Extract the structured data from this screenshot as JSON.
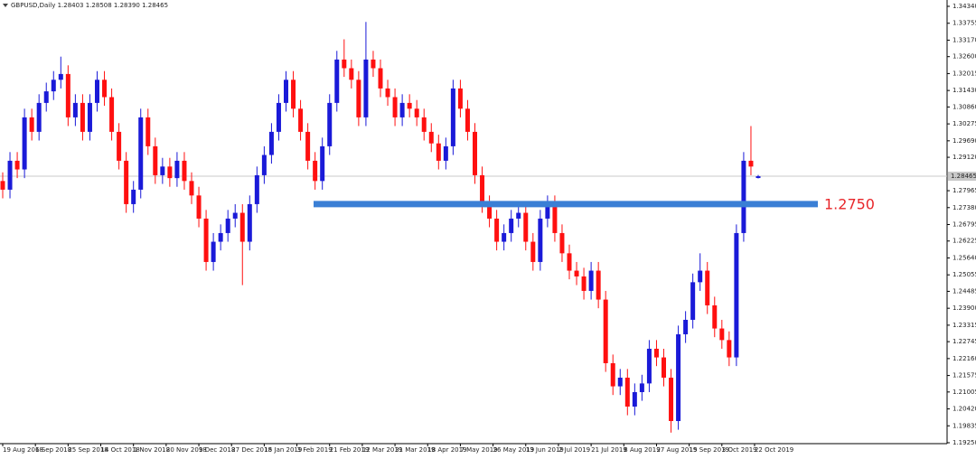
{
  "chart_data": {
    "type": "candlestick",
    "title": "GBPUSD,Daily  1.28403 1.28508 1.28390 1.28465",
    "open": [
      1.283,
      1.28,
      1.29,
      1.287,
      1.305,
      1.3,
      1.31,
      1.314,
      1.318,
      1.32,
      1.305,
      1.31,
      1.3,
      1.31,
      1.318,
      1.312,
      1.3,
      1.29,
      1.275,
      1.28,
      1.305,
      1.295,
      1.285,
      1.288,
      1.284,
      1.29,
      1.283,
      1.278,
      1.27,
      1.255,
      1.262,
      1.265,
      1.27,
      1.272,
      1.262,
      1.275,
      1.285,
      1.292,
      1.3,
      1.31,
      1.318,
      1.308,
      1.3,
      1.29,
      1.283,
      1.295,
      1.31,
      1.325,
      1.322,
      1.318,
      1.305,
      1.325,
      1.322,
      1.315,
      1.312,
      1.305,
      1.31,
      1.308,
      1.305,
      1.3,
      1.296,
      1.29,
      1.295,
      1.315,
      1.308,
      1.3,
      1.285,
      1.275,
      1.27,
      1.262,
      1.265,
      1.27,
      1.272,
      1.262,
      1.255,
      1.27,
      1.275,
      1.265,
      1.258,
      1.252,
      1.25,
      1.245,
      1.252,
      1.242,
      1.22,
      1.212,
      1.215,
      1.205,
      1.21,
      1.213,
      1.225,
      1.222,
      1.215,
      1.2,
      1.23,
      1.235,
      1.248,
      1.252,
      1.24,
      1.232,
      1.228,
      1.222,
      1.265,
      1.29,
      1.28403
    ],
    "high": [
      1.286,
      1.293,
      1.293,
      1.308,
      1.308,
      1.313,
      1.317,
      1.321,
      1.326,
      1.323,
      1.313,
      1.313,
      1.313,
      1.321,
      1.321,
      1.315,
      1.303,
      1.293,
      1.283,
      1.308,
      1.308,
      1.298,
      1.291,
      1.291,
      1.293,
      1.293,
      1.286,
      1.281,
      1.273,
      1.265,
      1.268,
      1.273,
      1.275,
      1.275,
      1.278,
      1.288,
      1.295,
      1.303,
      1.313,
      1.321,
      1.321,
      1.311,
      1.303,
      1.293,
      1.298,
      1.313,
      1.328,
      1.332,
      1.325,
      1.321,
      1.338,
      1.328,
      1.325,
      1.318,
      1.315,
      1.313,
      1.313,
      1.311,
      1.308,
      1.303,
      1.299,
      1.298,
      1.318,
      1.318,
      1.311,
      1.303,
      1.288,
      1.278,
      1.273,
      1.268,
      1.273,
      1.276,
      1.275,
      1.265,
      1.273,
      1.278,
      1.278,
      1.268,
      1.261,
      1.255,
      1.253,
      1.255,
      1.255,
      1.245,
      1.223,
      1.218,
      1.218,
      1.213,
      1.216,
      1.228,
      1.228,
      1.225,
      1.218,
      1.233,
      1.238,
      1.251,
      1.258,
      1.255,
      1.243,
      1.235,
      1.231,
      1.268,
      1.293,
      1.302,
      1.28508
    ],
    "low": [
      1.277,
      1.277,
      1.284,
      1.284,
      1.297,
      1.297,
      1.307,
      1.311,
      1.315,
      1.302,
      1.302,
      1.297,
      1.297,
      1.307,
      1.309,
      1.297,
      1.287,
      1.272,
      1.272,
      1.277,
      1.292,
      1.282,
      1.282,
      1.281,
      1.281,
      1.28,
      1.275,
      1.267,
      1.252,
      1.252,
      1.259,
      1.262,
      1.267,
      1.247,
      1.259,
      1.272,
      1.282,
      1.289,
      1.297,
      1.307,
      1.305,
      1.297,
      1.287,
      1.28,
      1.28,
      1.292,
      1.307,
      1.319,
      1.315,
      1.302,
      1.302,
      1.319,
      1.312,
      1.309,
      1.302,
      1.302,
      1.305,
      1.302,
      1.297,
      1.293,
      1.287,
      1.287,
      1.292,
      1.305,
      1.297,
      1.282,
      1.272,
      1.267,
      1.259,
      1.259,
      1.262,
      1.267,
      1.259,
      1.252,
      1.252,
      1.267,
      1.262,
      1.255,
      1.249,
      1.247,
      1.242,
      1.242,
      1.239,
      1.217,
      1.209,
      1.209,
      1.202,
      1.202,
      1.207,
      1.21,
      1.219,
      1.212,
      1.196,
      1.197,
      1.227,
      1.232,
      1.245,
      1.237,
      1.229,
      1.225,
      1.219,
      1.219,
      1.262,
      1.285,
      1.2839
    ],
    "close": [
      1.28,
      1.29,
      1.287,
      1.305,
      1.3,
      1.31,
      1.314,
      1.318,
      1.32,
      1.305,
      1.31,
      1.3,
      1.31,
      1.318,
      1.312,
      1.3,
      1.29,
      1.275,
      1.28,
      1.305,
      1.295,
      1.285,
      1.288,
      1.284,
      1.29,
      1.283,
      1.278,
      1.27,
      1.255,
      1.262,
      1.265,
      1.27,
      1.272,
      1.262,
      1.275,
      1.285,
      1.292,
      1.3,
      1.31,
      1.318,
      1.308,
      1.3,
      1.29,
      1.283,
      1.295,
      1.31,
      1.325,
      1.322,
      1.318,
      1.305,
      1.325,
      1.322,
      1.315,
      1.312,
      1.305,
      1.31,
      1.308,
      1.305,
      1.3,
      1.296,
      1.29,
      1.295,
      1.315,
      1.308,
      1.3,
      1.285,
      1.275,
      1.27,
      1.262,
      1.265,
      1.27,
      1.272,
      1.262,
      1.255,
      1.27,
      1.275,
      1.265,
      1.258,
      1.252,
      1.25,
      1.245,
      1.252,
      1.242,
      1.22,
      1.212,
      1.215,
      1.205,
      1.21,
      1.213,
      1.225,
      1.222,
      1.215,
      1.2,
      1.23,
      1.235,
      1.248,
      1.252,
      1.24,
      1.232,
      1.228,
      1.222,
      1.265,
      1.29,
      1.288,
      1.28465
    ],
    "up_color": "#1a1ad8",
    "down_color": "#ff1010",
    "xlim": [
      0,
      130
    ],
    "xticks": [
      {
        "value": 0,
        "label": "19 Aug 2018"
      },
      {
        "value": 4.5,
        "label": "6 Sep 2018"
      },
      {
        "value": 9,
        "label": "25 Sep 2018"
      },
      {
        "value": 13.5,
        "label": "14 Oct 2018"
      },
      {
        "value": 18,
        "label": "1 Nov 2018"
      },
      {
        "value": 22.5,
        "label": "20 Nov 2018"
      },
      {
        "value": 27,
        "label": "9 Dec 2018"
      },
      {
        "value": 31.5,
        "label": "27 Dec 2018"
      },
      {
        "value": 36,
        "label": "15 Jan 2019"
      },
      {
        "value": 40.5,
        "label": "3 Feb 2019"
      },
      {
        "value": 45,
        "label": "21 Feb 2019"
      },
      {
        "value": 49.5,
        "label": "12 Mar 2019"
      },
      {
        "value": 54,
        "label": "31 Mar 2019"
      },
      {
        "value": 58.5,
        "label": "18 Apr 2019"
      },
      {
        "value": 63,
        "label": "7 May 2019"
      },
      {
        "value": 67.5,
        "label": "26 May 2019"
      },
      {
        "value": 72,
        "label": "13 Jun 2019"
      },
      {
        "value": 76.5,
        "label": "2 Jul 2019"
      },
      {
        "value": 81,
        "label": "21 Jul 2019"
      },
      {
        "value": 85.5,
        "label": "8 Aug 2019"
      },
      {
        "value": 90,
        "label": "27 Aug 2019"
      },
      {
        "value": 94.5,
        "label": "15 Sep 2019"
      },
      {
        "value": 99,
        "label": "3 Oct 2019"
      },
      {
        "value": 103.5,
        "label": "22 Oct 2019"
      }
    ],
    "ylim": [
      1.1925,
      1.3434
    ],
    "yticks": [
      {
        "value": 1.3434,
        "label": "1.34340"
      },
      {
        "value": 1.33755,
        "label": "1.33755"
      },
      {
        "value": 1.3317,
        "label": "1.33170"
      },
      {
        "value": 1.326,
        "label": "1.32600"
      },
      {
        "value": 1.32015,
        "label": "1.32015"
      },
      {
        "value": 1.3143,
        "label": "1.31430"
      },
      {
        "value": 1.3086,
        "label": "1.30860"
      },
      {
        "value": 1.30275,
        "label": "1.30275"
      },
      {
        "value": 1.2969,
        "label": "1.29690"
      },
      {
        "value": 1.2912,
        "label": "1.29120"
      },
      {
        "value": 1.27965,
        "label": "1.27965"
      },
      {
        "value": 1.2738,
        "label": "1.27380"
      },
      {
        "value": 1.26795,
        "label": "1.26795"
      },
      {
        "value": 1.26225,
        "label": "1.26225"
      },
      {
        "value": 1.2564,
        "label": "1.25640"
      },
      {
        "value": 1.25055,
        "label": "1.25055"
      },
      {
        "value": 1.24485,
        "label": "1.24485"
      },
      {
        "value": 1.239,
        "label": "1.23900"
      },
      {
        "value": 1.23315,
        "label": "1.23315"
      },
      {
        "value": 1.22745,
        "label": "1.22745"
      },
      {
        "value": 1.2216,
        "label": "1.22160"
      },
      {
        "value": 1.21575,
        "label": "1.21575"
      },
      {
        "value": 1.21005,
        "label": "1.21005"
      },
      {
        "value": 1.2042,
        "label": "1.20420"
      },
      {
        "value": 1.19835,
        "label": "1.19835"
      },
      {
        "value": 1.1925,
        "label": "1.19250"
      }
    ],
    "current_price": 1.28465,
    "level": {
      "value": 1.275,
      "label": "1.2750",
      "color": "#3a7fd5",
      "label_color": "#e8262a"
    }
  }
}
